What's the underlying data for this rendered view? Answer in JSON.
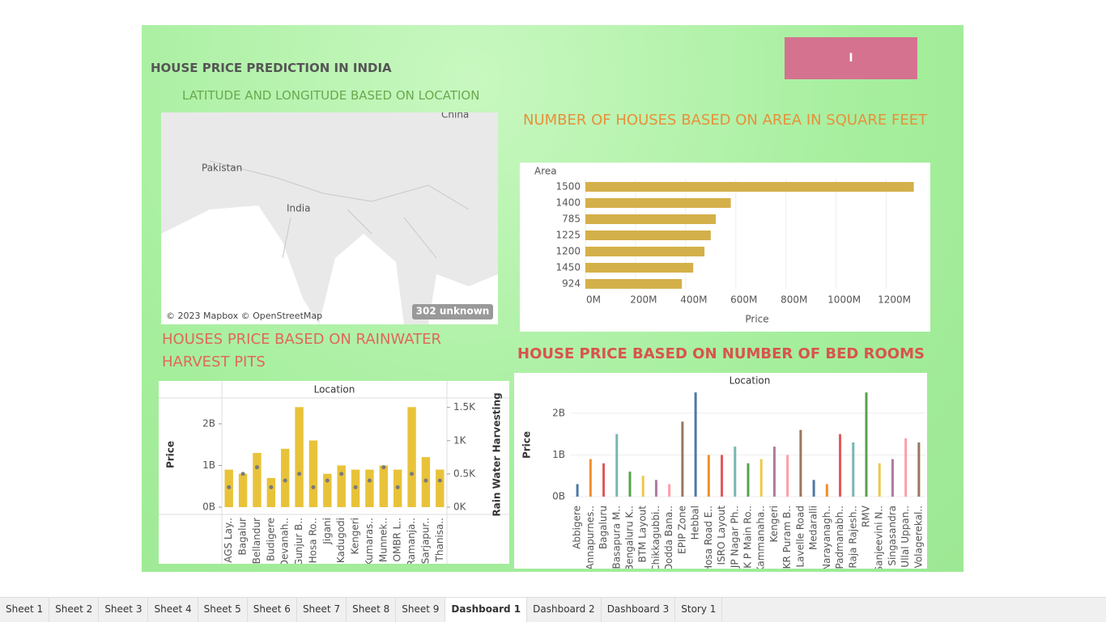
{
  "dashboard": {
    "title": "HOUSE PRICE PREDICTION IN INDIA",
    "button": "I"
  },
  "map": {
    "title": "LATITUDE AND LONGITUDE BASED ON LOCATION",
    "places": [
      "China",
      "Pakistan",
      "India"
    ],
    "credit": "© 2023 Mapbox © OpenStreetMap",
    "badge": "302 unknown"
  },
  "chart_data": [
    {
      "type": "hbar",
      "title": "NUMBER OF HOUSES BASED ON AREA IN SQUARE FEET",
      "y_label": "Area",
      "x_label": "Price",
      "color": "#d4b04a",
      "categories": [
        "1500",
        "1400",
        "785",
        "1225",
        "1200",
        "1450",
        "924"
      ],
      "values": [
        1310000000,
        580000000,
        520000000,
        500000000,
        475000000,
        430000000,
        385000000
      ],
      "xlim": [
        0,
        1350000000
      ],
      "xticks": [
        {
          "value": 0,
          "label": "0M"
        },
        {
          "value": 200000000,
          "label": "200M"
        },
        {
          "value": 400000000,
          "label": "400M"
        },
        {
          "value": 600000000,
          "label": "600M"
        },
        {
          "value": 800000000,
          "label": "800M"
        },
        {
          "value": 1000000000,
          "label": "1000M"
        },
        {
          "value": 1200000000,
          "label": "1200M"
        }
      ],
      "grid": true
    },
    {
      "type": "dual",
      "title": "HOUSES PRICE BASED ON RAINWATER HARVEST PITS",
      "x_label": "Location",
      "y_label": "Price",
      "y2_label": "Rain Water Harvesting",
      "categories": [
        "AGS Lay..",
        "Bagalur",
        "Bellandur",
        "Budigere",
        "Devanah..",
        "Gunjur B..",
        "Hosa Ro..",
        "Jigani",
        "Kadugodi",
        "Kengeri",
        "Kumaras..",
        "Munnek..",
        "OMBR L..",
        "Ramanja..",
        "Sarjapur..",
        "Thanisa.."
      ],
      "series": [
        {
          "name": "Price",
          "color": "#e8c33a",
          "values": [
            900000000,
            800000000,
            1300000000,
            700000000,
            1400000000,
            2400000000,
            1600000000,
            800000000,
            1000000000,
            900000000,
            900000000,
            1000000000,
            900000000,
            2400000000,
            1200000000,
            900000000
          ]
        },
        {
          "name": "Rain Water Harvesting",
          "color": "#7a7a7a",
          "axis": "y2",
          "values": [
            300,
            500,
            600,
            300,
            400,
            500,
            300,
            400,
            500,
            300,
            400,
            600,
            300,
            500,
            400,
            400
          ]
        }
      ],
      "ylim": [
        0,
        2600000000
      ],
      "yticks": [
        {
          "value": 0,
          "label": "0B"
        },
        {
          "value": 1000000000,
          "label": "1B"
        },
        {
          "value": 2000000000,
          "label": "2B"
        }
      ],
      "y2lim": [
        0,
        1630
      ],
      "y2ticks": [
        {
          "value": 0,
          "label": "0K"
        },
        {
          "value": 500,
          "label": "0.5K"
        },
        {
          "value": 1000,
          "label": "1K"
        },
        {
          "value": 1500,
          "label": "1.5K"
        }
      ]
    },
    {
      "type": "bar",
      "title": "HOUSE PRICE BASED ON NUMBER OF BED ROOMS",
      "x_label": "Location",
      "y_label": "Price",
      "colors": [
        "#4e79a7",
        "#f28e2b",
        "#e15759",
        "#76b7b2",
        "#59a14f",
        "#edc948",
        "#b07aa1",
        "#ff9da7",
        "#9c755f"
      ],
      "categories": [
        "Abbigere",
        "Annapurnes..",
        "Bagaluru",
        "Basapura M..",
        "Bengaluru K..",
        "BTM Layout",
        "Chikkagubbi..",
        "Dodda Bana..",
        "EPIP Zone",
        "Hebbal",
        "Hosa Road E..",
        "ISRO Layout",
        "JP Nagar Ph..",
        "K P Main Ro..",
        "Kammanaha..",
        "Kengeri",
        "KR Puram B..",
        "Lavelle Road",
        "Medaralli",
        "Narayanagh..",
        "Padmanabh..",
        "Raja Rajesh..",
        "RMV",
        "Sanjeevini N..",
        "Singasandra",
        "Ullal Uppan..",
        "Volagerekal.."
      ],
      "values": [
        300000000,
        900000000,
        800000000,
        1500000000,
        600000000,
        500000000,
        400000000,
        300000000,
        1800000000,
        2500000000,
        1000000000,
        1000000000,
        1200000000,
        800000000,
        900000000,
        1200000000,
        1000000000,
        1600000000,
        400000000,
        300000000,
        1500000000,
        1300000000,
        2500000000,
        800000000,
        900000000,
        1400000000,
        1300000000
      ],
      "ylim": [
        0,
        2600000000
      ],
      "yticks": [
        {
          "value": 0,
          "label": "0B"
        },
        {
          "value": 1000000000,
          "label": "1B"
        },
        {
          "value": 2000000000,
          "label": "2B"
        }
      ],
      "grid": true
    }
  ],
  "tabs": [
    "Sheet 1",
    "Sheet 2",
    "Sheet 3",
    "Sheet 4",
    "Sheet 5",
    "Sheet 6",
    "Sheet 7",
    "Sheet 8",
    "Sheet 9",
    "Dashboard 1",
    "Dashboard 2",
    "Dashboard 3",
    "Story 1"
  ]
}
